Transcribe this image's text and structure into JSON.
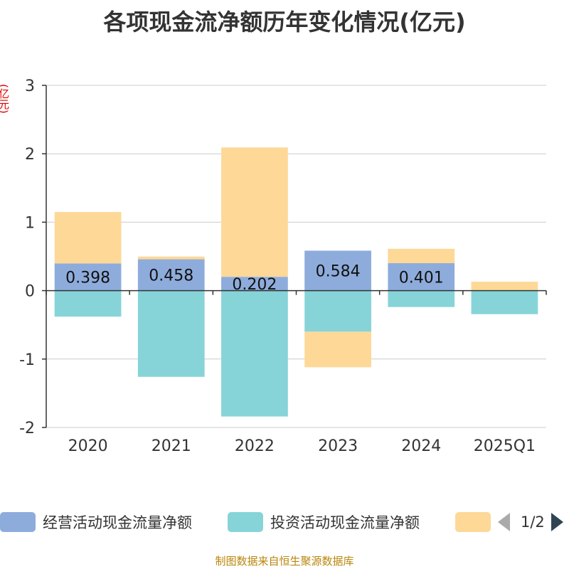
{
  "title": "各项现金流净额历年变化情况(亿元)",
  "unit_label": "(亿元)",
  "footer": "制图数据来自恒生聚源数据库",
  "legend": {
    "items": [
      {
        "label": "经营活动现金流量净额",
        "color": "#8eacdb"
      },
      {
        "label": "投资活动现金流量净额",
        "color": "#86d4d8"
      },
      {
        "label": "",
        "color": "#fdd897"
      }
    ],
    "page_text": "1/2"
  },
  "chart_data": {
    "type": "bar",
    "stacked": true,
    "categories": [
      "2020",
      "2021",
      "2022",
      "2023",
      "2024",
      "2025Q1"
    ],
    "ylim": [
      -2,
      3
    ],
    "yticks": [
      -2,
      -1,
      0,
      1,
      2,
      3
    ],
    "grid": true,
    "series": [
      {
        "name": "经营活动现金流量净额",
        "color": "#8eacdb",
        "values": [
          0.398,
          0.458,
          0.202,
          0.584,
          0.401,
          -0.004
        ],
        "labels": [
          "0.398",
          "0.458",
          "0.202",
          "0.584",
          "0.401",
          ""
        ]
      },
      {
        "name": "投资活动现金流量净额",
        "color": "#86d4d8",
        "values": [
          -0.38,
          -1.26,
          -1.84,
          -0.6,
          -0.24,
          -0.34
        ]
      },
      {
        "name": "",
        "color": "#fdd897",
        "values": [
          0.75,
          0.04,
          1.89,
          -0.52,
          0.21,
          0.13
        ]
      }
    ]
  }
}
